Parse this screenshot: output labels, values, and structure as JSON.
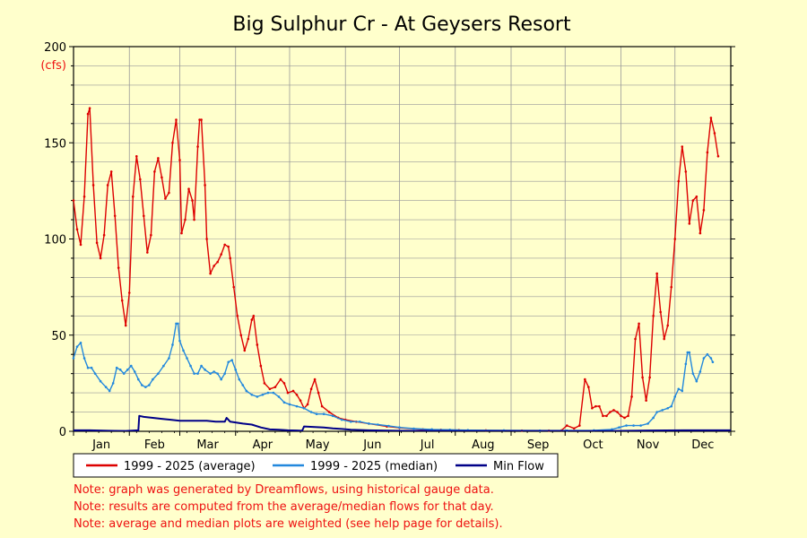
{
  "chart_data": {
    "type": "line",
    "title": "Big Sulphur Cr - At Geysers Resort",
    "y_unit_label": "(cfs)",
    "xlabel": "",
    "ylabel": "",
    "ylim": [
      0,
      200
    ],
    "yticks": [
      0,
      50,
      100,
      150,
      200
    ],
    "xlim": [
      1,
      366
    ],
    "months": [
      "Jan",
      "Feb",
      "Mar",
      "Apr",
      "May",
      "Jun",
      "Jul",
      "Aug",
      "Sep",
      "Oct",
      "Nov",
      "Dec"
    ],
    "month_starts": [
      1,
      32,
      60,
      91,
      121,
      152,
      182,
      213,
      244,
      274,
      305,
      335,
      366
    ],
    "grid": true,
    "legend_position": "bottom",
    "series": [
      {
        "name": "1999 - 2025 (average)",
        "color": "#dd0000",
        "points": [
          [
            1,
            120
          ],
          [
            3,
            105
          ],
          [
            5,
            97
          ],
          [
            7,
            122
          ],
          [
            9,
            165
          ],
          [
            10,
            168
          ],
          [
            12,
            128
          ],
          [
            14,
            98
          ],
          [
            16,
            90
          ],
          [
            18,
            102
          ],
          [
            20,
            128
          ],
          [
            22,
            135
          ],
          [
            24,
            112
          ],
          [
            26,
            85
          ],
          [
            28,
            68
          ],
          [
            30,
            55
          ],
          [
            32,
            72
          ],
          [
            34,
            122
          ],
          [
            36,
            143
          ],
          [
            38,
            131
          ],
          [
            40,
            112
          ],
          [
            42,
            93
          ],
          [
            44,
            102
          ],
          [
            46,
            135
          ],
          [
            48,
            142
          ],
          [
            50,
            132
          ],
          [
            52,
            121
          ],
          [
            54,
            124
          ],
          [
            56,
            150
          ],
          [
            58,
            162
          ],
          [
            60,
            141
          ],
          [
            61,
            103
          ],
          [
            63,
            110
          ],
          [
            65,
            126
          ],
          [
            67,
            120
          ],
          [
            68,
            110
          ],
          [
            70,
            148
          ],
          [
            71,
            162
          ],
          [
            72,
            162
          ],
          [
            74,
            128
          ],
          [
            75,
            100
          ],
          [
            77,
            82
          ],
          [
            79,
            86
          ],
          [
            81,
            88
          ],
          [
            83,
            92
          ],
          [
            85,
            97
          ],
          [
            87,
            96
          ],
          [
            88,
            90
          ],
          [
            90,
            75
          ],
          [
            92,
            60
          ],
          [
            94,
            50
          ],
          [
            96,
            42
          ],
          [
            98,
            48
          ],
          [
            100,
            58
          ],
          [
            101,
            60
          ],
          [
            103,
            45
          ],
          [
            105,
            34
          ],
          [
            107,
            25
          ],
          [
            110,
            22
          ],
          [
            113,
            23
          ],
          [
            116,
            27
          ],
          [
            118,
            25
          ],
          [
            120,
            20
          ],
          [
            123,
            21
          ],
          [
            125,
            19
          ],
          [
            127,
            16
          ],
          [
            129,
            12
          ],
          [
            131,
            14
          ],
          [
            133,
            22
          ],
          [
            135,
            27
          ],
          [
            137,
            20
          ],
          [
            139,
            13
          ],
          [
            143,
            10
          ],
          [
            148,
            7
          ],
          [
            152,
            6
          ],
          [
            158,
            5
          ],
          [
            165,
            4
          ],
          [
            175,
            2.5
          ],
          [
            182,
            1.8
          ],
          [
            195,
            1
          ],
          [
            205,
            0.8
          ],
          [
            215,
            0.6
          ],
          [
            230,
            0.5
          ],
          [
            250,
            0.4
          ],
          [
            265,
            0.4
          ],
          [
            272,
            0.5
          ],
          [
            275,
            3
          ],
          [
            279,
            1.5
          ],
          [
            282,
            3
          ],
          [
            285,
            27
          ],
          [
            287,
            23
          ],
          [
            289,
            12
          ],
          [
            291,
            13
          ],
          [
            293,
            13
          ],
          [
            295,
            8
          ],
          [
            297,
            8
          ],
          [
            299,
            10
          ],
          [
            301,
            11
          ],
          [
            303,
            10
          ],
          [
            305,
            8
          ],
          [
            307,
            7
          ],
          [
            309,
            8
          ],
          [
            311,
            18
          ],
          [
            313,
            48
          ],
          [
            315,
            56
          ],
          [
            317,
            28
          ],
          [
            319,
            16
          ],
          [
            321,
            28
          ],
          [
            323,
            60
          ],
          [
            325,
            82
          ],
          [
            327,
            62
          ],
          [
            329,
            48
          ],
          [
            331,
            55
          ],
          [
            333,
            75
          ],
          [
            335,
            100
          ],
          [
            337,
            130
          ],
          [
            339,
            148
          ],
          [
            341,
            135
          ],
          [
            343,
            108
          ],
          [
            345,
            120
          ],
          [
            347,
            122
          ],
          [
            349,
            103
          ],
          [
            351,
            115
          ],
          [
            353,
            145
          ],
          [
            355,
            163
          ],
          [
            357,
            155
          ],
          [
            359,
            143
          ]
        ]
      },
      {
        "name": "1999 - 2025 (median)",
        "color": "#2288dd",
        "points": [
          [
            1,
            38
          ],
          [
            3,
            44
          ],
          [
            5,
            46
          ],
          [
            7,
            38
          ],
          [
            9,
            33
          ],
          [
            11,
            33
          ],
          [
            13,
            30
          ],
          [
            16,
            26
          ],
          [
            19,
            23
          ],
          [
            21,
            21
          ],
          [
            23,
            25
          ],
          [
            25,
            33
          ],
          [
            27,
            32
          ],
          [
            29,
            30
          ],
          [
            31,
            32
          ],
          [
            33,
            34
          ],
          [
            35,
            31
          ],
          [
            37,
            27
          ],
          [
            39,
            24
          ],
          [
            41,
            23
          ],
          [
            43,
            24
          ],
          [
            45,
            27
          ],
          [
            48,
            30
          ],
          [
            51,
            34
          ],
          [
            54,
            38
          ],
          [
            56,
            45
          ],
          [
            58,
            56
          ],
          [
            59,
            56
          ],
          [
            60,
            47
          ],
          [
            62,
            42
          ],
          [
            64,
            38
          ],
          [
            66,
            34
          ],
          [
            68,
            30
          ],
          [
            70,
            30
          ],
          [
            72,
            34
          ],
          [
            74,
            32
          ],
          [
            77,
            30
          ],
          [
            79,
            31
          ],
          [
            81,
            30
          ],
          [
            83,
            27
          ],
          [
            85,
            30
          ],
          [
            87,
            36
          ],
          [
            89,
            37
          ],
          [
            91,
            32
          ],
          [
            93,
            27
          ],
          [
            95,
            24
          ],
          [
            97,
            21
          ],
          [
            100,
            19
          ],
          [
            103,
            18
          ],
          [
            106,
            19
          ],
          [
            109,
            20
          ],
          [
            112,
            20
          ],
          [
            115,
            18
          ],
          [
            118,
            15
          ],
          [
            121,
            14
          ],
          [
            125,
            13
          ],
          [
            129,
            12
          ],
          [
            133,
            10
          ],
          [
            136,
            9
          ],
          [
            140,
            9
          ],
          [
            145,
            8
          ],
          [
            150,
            6
          ],
          [
            155,
            5
          ],
          [
            160,
            5
          ],
          [
            165,
            4
          ],
          [
            170,
            3.5
          ],
          [
            176,
            2.8
          ],
          [
            182,
            2
          ],
          [
            190,
            1.4
          ],
          [
            200,
            1
          ],
          [
            210,
            0.8
          ],
          [
            220,
            0.6
          ],
          [
            240,
            0.5
          ],
          [
            260,
            0.4
          ],
          [
            275,
            0.4
          ],
          [
            290,
            0.5
          ],
          [
            300,
            1
          ],
          [
            304,
            2
          ],
          [
            308,
            3
          ],
          [
            312,
            3
          ],
          [
            316,
            3
          ],
          [
            320,
            4
          ],
          [
            323,
            7
          ],
          [
            325,
            10
          ],
          [
            328,
            11
          ],
          [
            331,
            12
          ],
          [
            333,
            13
          ],
          [
            335,
            18
          ],
          [
            337,
            22
          ],
          [
            339,
            21
          ],
          [
            341,
            35
          ],
          [
            342,
            41
          ],
          [
            343,
            41
          ],
          [
            345,
            30
          ],
          [
            347,
            26
          ],
          [
            349,
            31
          ],
          [
            351,
            38
          ],
          [
            353,
            40
          ],
          [
            355,
            38
          ],
          [
            356,
            36
          ]
        ]
      },
      {
        "name": "Min Flow",
        "color": "#000088",
        "points": [
          [
            1,
            0.5
          ],
          [
            10,
            0.5
          ],
          [
            20,
            0.3
          ],
          [
            30,
            0.2
          ],
          [
            37,
            0.5
          ],
          [
            37.5,
            8
          ],
          [
            40,
            7.5
          ],
          [
            45,
            7
          ],
          [
            50,
            6.5
          ],
          [
            55,
            6
          ],
          [
            60,
            5.5
          ],
          [
            65,
            5.5
          ],
          [
            70,
            5.5
          ],
          [
            75,
            5.5
          ],
          [
            80,
            5
          ],
          [
            85,
            5
          ],
          [
            86,
            7
          ],
          [
            88,
            5
          ],
          [
            95,
            4
          ],
          [
            100,
            3.5
          ],
          [
            105,
            2
          ],
          [
            110,
            1
          ],
          [
            115,
            0.8
          ],
          [
            120,
            0.5
          ],
          [
            125,
            0.4
          ],
          [
            128,
            0.3
          ],
          [
            129,
            2.5
          ],
          [
            135,
            2.2
          ],
          [
            140,
            2
          ],
          [
            145,
            1.5
          ],
          [
            150,
            1.2
          ],
          [
            155,
            0.8
          ],
          [
            165,
            0.5
          ],
          [
            180,
            0.3
          ],
          [
            210,
            0.2
          ],
          [
            240,
            0.1
          ],
          [
            270,
            0.1
          ],
          [
            300,
            0.2
          ],
          [
            320,
            0.4
          ],
          [
            340,
            0.5
          ],
          [
            366,
            0.5
          ]
        ]
      }
    ],
    "notes": [
      "Note: graph was generated by Dreamflows, using historical gauge data.",
      "Note: results are computed from the average/median flows for that day.",
      "Note: average and median plots are weighted (see help page for details)."
    ]
  },
  "colors": {
    "background": "#ffffcc",
    "grid": "#999999",
    "note_text": "#ee1111"
  }
}
